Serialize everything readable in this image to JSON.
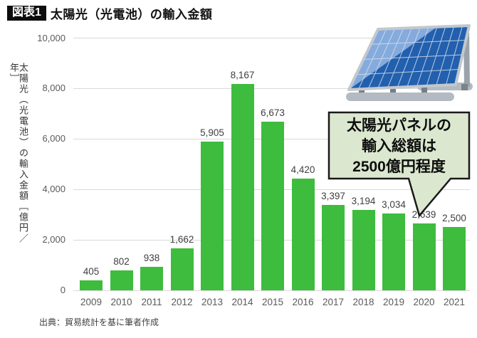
{
  "header": {
    "badge": "図表1",
    "title": "太陽光（光電池）の輸入金額"
  },
  "chart_data": {
    "type": "bar",
    "title": "太陽光（光電池）の輸入金額",
    "xlabel": "",
    "ylabel": "太陽光（光電池）の輸入金額［億円／年］",
    "categories": [
      "2009",
      "2010",
      "2011",
      "2012",
      "2013",
      "2014",
      "2015",
      "2016",
      "2017",
      "2018",
      "2019",
      "2020",
      "2021"
    ],
    "values": [
      405,
      802,
      938,
      1662,
      5905,
      8167,
      6673,
      4420,
      3397,
      3194,
      3034,
      2639,
      2500
    ],
    "value_labels": [
      "405",
      "802",
      "938",
      "1,662",
      "5,905",
      "8,167",
      "6,673",
      "4,420",
      "3,397",
      "3,194",
      "3,034",
      "2,639",
      "2,500"
    ],
    "ylim": [
      0,
      10000
    ],
    "yticks": [
      {
        "value": 0,
        "label": "0"
      },
      {
        "value": 2000,
        "label": "2,000"
      },
      {
        "value": 4000,
        "label": "4,000"
      },
      {
        "value": 6000,
        "label": "6,000"
      },
      {
        "value": 8000,
        "label": "8,000"
      },
      {
        "value": 10000,
        "label": "10,000"
      }
    ],
    "grid": true,
    "legend": "none",
    "bar_color": "#3ebc3e"
  },
  "callout": {
    "lines": [
      "太陽光パネルの",
      "輸入総額は",
      "2500億円程度"
    ],
    "fill_color": "#dbe8cf",
    "border_color": "#1a1a1a"
  },
  "source": "出典：貿易統計を基に筆者作成",
  "illustration": {
    "name": "solar-panel",
    "panel_color": "#2260ae",
    "glare_color": "#85abdd"
  }
}
